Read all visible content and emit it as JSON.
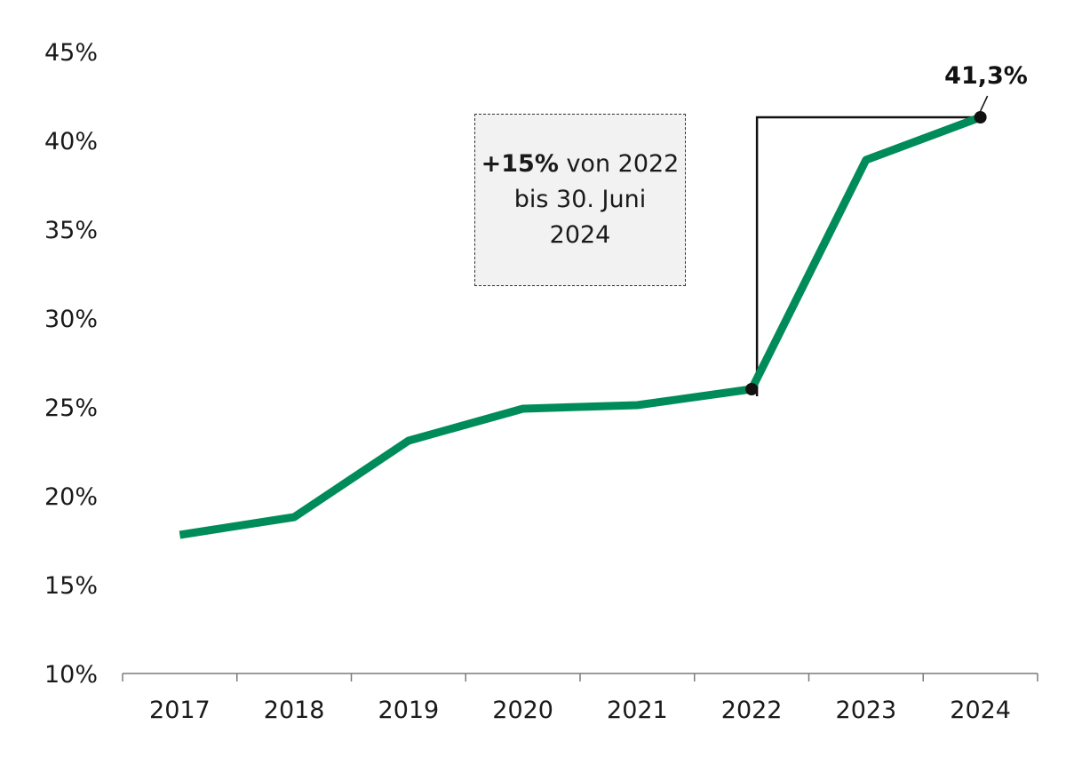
{
  "chart_data": {
    "type": "line",
    "categories": [
      "2017",
      "2018",
      "2019",
      "2020",
      "2021",
      "2022",
      "2023",
      "2024"
    ],
    "series": [
      {
        "values": [
          17.8,
          18.8,
          23.1,
          24.9,
          25.1,
          26.0,
          38.9,
          41.3
        ],
        "color": "#008c5a"
      }
    ],
    "ylim": [
      10,
      45
    ],
    "yticks": [
      "10%",
      "15%",
      "20%",
      "25%",
      "30%",
      "35%",
      "40%",
      "45%"
    ],
    "grid": false,
    "annotation": {
      "bold_text": "+15%",
      "text_line1": " von 2022",
      "text_line2": "bis 30. Juni",
      "text_line3": "2024",
      "bracket_from": "2022",
      "bracket_to": "2024"
    },
    "end_label": "41,3%"
  }
}
